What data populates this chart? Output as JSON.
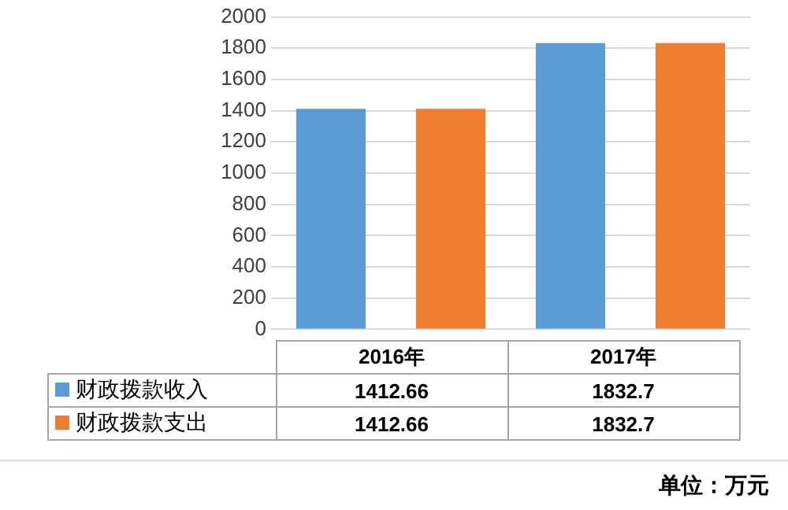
{
  "chart_data": {
    "type": "bar",
    "categories": [
      "2016年",
      "2017年"
    ],
    "series": [
      {
        "name": "财政拨款收入",
        "color": "#5b9bd5",
        "values": [
          1412.66,
          1832.7
        ]
      },
      {
        "name": "财政拨款支出",
        "color": "#ed7d31",
        "values": [
          1412.66,
          1832.7
        ]
      }
    ],
    "ylim": [
      0,
      2000
    ],
    "yticks": [
      0,
      200,
      400,
      600,
      800,
      1000,
      1200,
      1400,
      1600,
      1800,
      2000
    ],
    "grid": "y",
    "legend": "bottom",
    "data_labels": true,
    "annotations": [
      "单位：万元"
    ]
  }
}
